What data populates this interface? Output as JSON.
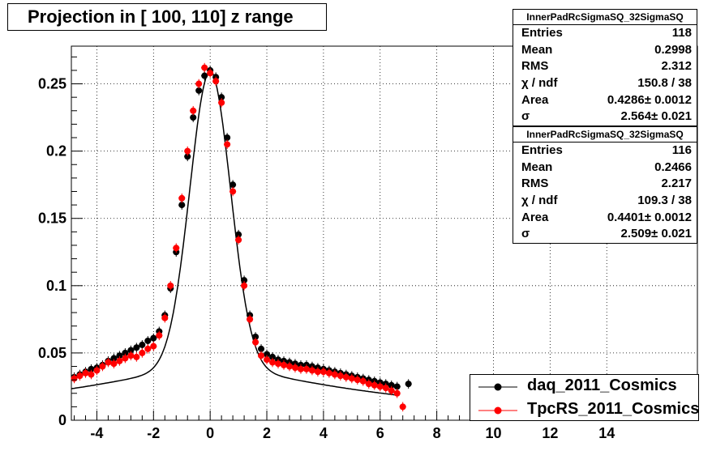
{
  "title": "Projection in [ 100, 110] z range",
  "stats_boxes": [
    {
      "header": "InnerPadRcSigmaSQ_32SigmaSQ",
      "rows": [
        {
          "key": "Entries",
          "value": "118"
        },
        {
          "key": "Mean",
          "value": "0.2998"
        },
        {
          "key": "RMS",
          "value": "2.312"
        },
        {
          "key": "χ  / ndf",
          "value": "150.8 / 38"
        },
        {
          "key": "Area",
          "value": "0.4286± 0.0012"
        },
        {
          "key": "σ",
          "value": "2.564± 0.021"
        }
      ]
    },
    {
      "header": "InnerPadRcSigmaSQ_32SigmaSQ",
      "rows": [
        {
          "key": "Entries",
          "value": "116"
        },
        {
          "key": "Mean",
          "value": "0.2466"
        },
        {
          "key": "RMS",
          "value": "2.217"
        },
        {
          "key": "χ  / ndf",
          "value": "109.3 / 38"
        },
        {
          "key": "Area",
          "value": "0.4401± 0.0012"
        },
        {
          "key": "σ",
          "value": "2.509± 0.021"
        }
      ]
    }
  ],
  "legend": [
    {
      "name": "daq_2011_Cosmics",
      "color": "#000000"
    },
    {
      "name": "TpcRS_2011_Cosmics",
      "color": "#ff0000"
    }
  ],
  "chart_data": {
    "type": "scatter",
    "title": "Projection in [ 100, 110] z range",
    "xlim": [
      -4.9,
      17.2
    ],
    "ylim": [
      0,
      0.278
    ],
    "x_ticks": [
      -4,
      -2,
      0,
      2,
      4,
      6,
      8,
      10,
      12,
      14
    ],
    "x_tick_labels": [
      "-4",
      "-2",
      "0",
      "2",
      "4",
      "6",
      "8",
      "10",
      "12",
      "14"
    ],
    "y_ticks": [
      0,
      0.05,
      0.1,
      0.15,
      0.2,
      0.25
    ],
    "y_tick_labels": [
      "0",
      "0.05",
      "0.1",
      "0.15",
      "0.2",
      "0.25"
    ],
    "grid": true,
    "legend_position": "bottom-right",
    "series": [
      {
        "name": "daq_2011_Cosmics",
        "color": "#000000",
        "x": [
          -4.8,
          -4.6,
          -4.4,
          -4.2,
          -4.0,
          -3.8,
          -3.6,
          -3.4,
          -3.2,
          -3.0,
          -2.8,
          -2.6,
          -2.4,
          -2.2,
          -2.0,
          -1.8,
          -1.6,
          -1.4,
          -1.2,
          -1.0,
          -0.8,
          -0.6,
          -0.4,
          -0.2,
          0.0,
          0.2,
          0.4,
          0.6,
          0.8,
          1.0,
          1.2,
          1.4,
          1.6,
          1.8,
          2.0,
          2.2,
          2.4,
          2.6,
          2.8,
          3.0,
          3.2,
          3.4,
          3.6,
          3.8,
          4.0,
          4.2,
          4.4,
          4.6,
          4.8,
          5.0,
          5.2,
          5.4,
          5.6,
          5.8,
          6.0,
          6.2,
          6.4,
          6.6,
          7.0
        ],
        "y": [
          0.032,
          0.034,
          0.036,
          0.038,
          0.039,
          0.041,
          0.044,
          0.046,
          0.048,
          0.05,
          0.052,
          0.054,
          0.056,
          0.059,
          0.061,
          0.066,
          0.078,
          0.098,
          0.125,
          0.16,
          0.196,
          0.225,
          0.245,
          0.256,
          0.26,
          0.255,
          0.24,
          0.21,
          0.175,
          0.138,
          0.104,
          0.078,
          0.062,
          0.053,
          0.049,
          0.047,
          0.045,
          0.044,
          0.043,
          0.042,
          0.041,
          0.041,
          0.04,
          0.039,
          0.038,
          0.037,
          0.036,
          0.035,
          0.034,
          0.033,
          0.032,
          0.031,
          0.03,
          0.029,
          0.028,
          0.027,
          0.026,
          0.025,
          0.027
        ]
      },
      {
        "name": "TpcRS_2011_Cosmics",
        "color": "#ff0000",
        "x": [
          -4.8,
          -4.6,
          -4.4,
          -4.2,
          -4.0,
          -3.8,
          -3.6,
          -3.4,
          -3.2,
          -3.0,
          -2.8,
          -2.6,
          -2.4,
          -2.2,
          -2.0,
          -1.8,
          -1.6,
          -1.4,
          -1.2,
          -1.0,
          -0.8,
          -0.6,
          -0.4,
          -0.2,
          0.0,
          0.2,
          0.4,
          0.6,
          0.8,
          1.0,
          1.2,
          1.4,
          1.6,
          1.8,
          2.0,
          2.2,
          2.4,
          2.6,
          2.8,
          3.0,
          3.2,
          3.4,
          3.6,
          3.8,
          4.0,
          4.2,
          4.4,
          4.6,
          4.8,
          5.0,
          5.2,
          5.4,
          5.6,
          5.8,
          6.0,
          6.2,
          6.4,
          6.6,
          6.8
        ],
        "y": [
          0.031,
          0.033,
          0.035,
          0.034,
          0.037,
          0.04,
          0.043,
          0.042,
          0.044,
          0.046,
          0.048,
          0.047,
          0.05,
          0.053,
          0.055,
          0.063,
          0.076,
          0.1,
          0.128,
          0.165,
          0.2,
          0.23,
          0.25,
          0.262,
          0.258,
          0.252,
          0.236,
          0.205,
          0.17,
          0.134,
          0.1,
          0.075,
          0.058,
          0.048,
          0.045,
          0.043,
          0.042,
          0.041,
          0.04,
          0.039,
          0.038,
          0.038,
          0.037,
          0.036,
          0.036,
          0.035,
          0.034,
          0.033,
          0.032,
          0.031,
          0.03,
          0.029,
          0.027,
          0.026,
          0.025,
          0.024,
          0.022,
          0.02,
          0.01
        ]
      }
    ]
  }
}
